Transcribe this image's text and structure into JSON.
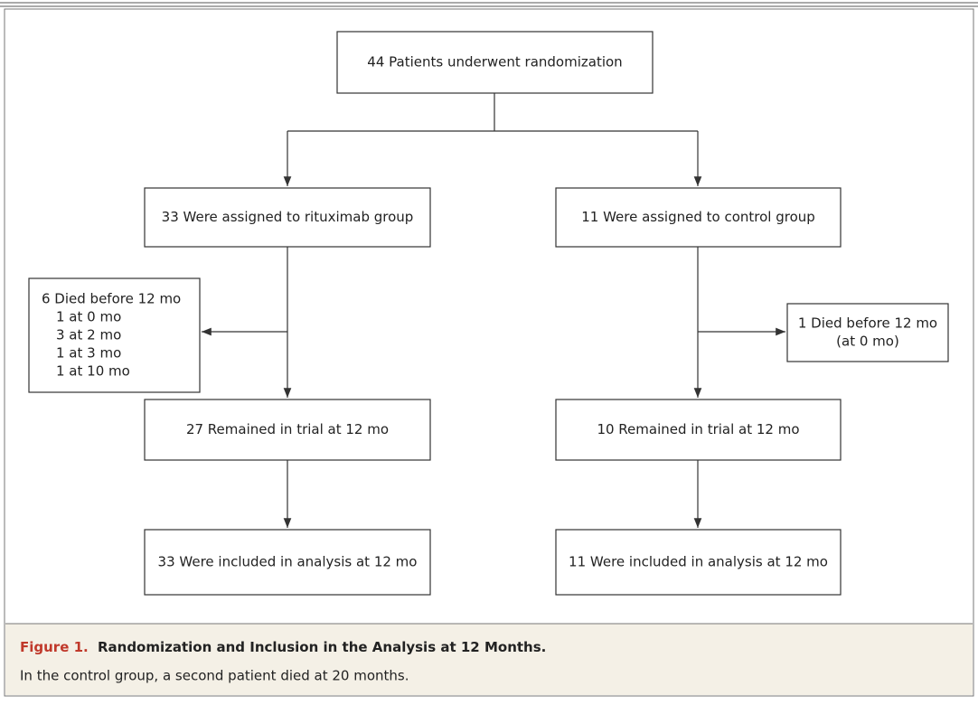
{
  "nodes": [
    {
      "lines": [
        "44 Patients underwent randomization"
      ]
    },
    {
      "lines": [
        "33 Were assigned to rituximab group"
      ]
    },
    {
      "lines": [
        "11 Were assigned to control group"
      ]
    },
    {
      "lines": [
        "6 Died before 12 mo",
        "1 at 0 mo",
        "3 at 2 mo",
        "1 at 3 mo",
        "1 at 10 mo"
      ]
    },
    {
      "lines": [
        "1 Died before 12 mo",
        "(at 0 mo)"
      ]
    },
    {
      "lines": [
        "27 Remained in trial at 12 mo"
      ]
    },
    {
      "lines": [
        "10 Remained in trial at 12 mo"
      ]
    },
    {
      "lines": [
        "33 Were included in analysis at 12 mo"
      ]
    },
    {
      "lines": [
        "11 Were included in analysis at 12 mo"
      ]
    }
  ],
  "caption": {
    "label": "Figure 1.",
    "title": "Randomization and Inclusion in the Analysis at 12 Months.",
    "note": "In the control group, a second patient died at 20 months."
  }
}
